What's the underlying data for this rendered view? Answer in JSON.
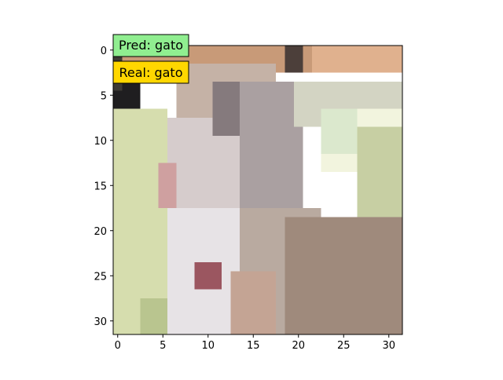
{
  "image": {
    "grid_size": [
      32,
      32
    ],
    "x_ticks": [
      0,
      5,
      10,
      15,
      20,
      25,
      30
    ],
    "y_ticks": [
      0,
      5,
      10,
      15,
      20,
      25,
      30
    ],
    "colors": {
      "frame": "#000000",
      "tick_text": "#000000"
    },
    "palette_regions": [
      {
        "color": "#c89a78",
        "x": [
          0,
          32
        ],
        "y": [
          0,
          3
        ]
      },
      {
        "color": "#e0b18e",
        "x": [
          22,
          32
        ],
        "y": [
          0,
          3
        ]
      },
      {
        "color": "#c5b2a6",
        "x": [
          7,
          18
        ],
        "y": [
          2,
          8
        ]
      },
      {
        "color": "#aaa0a1",
        "x": [
          12,
          21
        ],
        "y": [
          4,
          19
        ]
      },
      {
        "color": "#d3d4c3",
        "x": [
          20,
          32
        ],
        "y": [
          4,
          9
        ]
      },
      {
        "color": "#f2f4de",
        "x": [
          23,
          32
        ],
        "y": [
          7,
          14
        ]
      },
      {
        "color": "#c7cfa3",
        "x": [
          27,
          32
        ],
        "y": [
          9,
          19
        ]
      },
      {
        "color": "#d6ddae",
        "x": [
          0,
          6
        ],
        "y": [
          7,
          32
        ]
      },
      {
        "color": "#b9c58f",
        "x": [
          3,
          6
        ],
        "y": [
          28,
          32
        ]
      },
      {
        "color": "#d6cccc",
        "x": [
          6,
          14
        ],
        "y": [
          8,
          19
        ]
      },
      {
        "color": "#e7e3e6",
        "x": [
          6,
          14
        ],
        "y": [
          18,
          32
        ]
      },
      {
        "color": "#b9aaa0",
        "x": [
          14,
          23
        ],
        "y": [
          18,
          32
        ]
      },
      {
        "color": "#9f8a7c",
        "x": [
          19,
          32
        ],
        "y": [
          19,
          32
        ]
      },
      {
        "color": "#c4a494",
        "x": [
          13,
          18
        ],
        "y": [
          25,
          32
        ]
      },
      {
        "color": "#1f1e20",
        "x": [
          0,
          3
        ],
        "y": [
          3,
          7
        ]
      },
      {
        "color": "#3d3a34",
        "x": [
          0,
          1
        ],
        "y": [
          0,
          5
        ]
      },
      {
        "color": "#4c3f3a",
        "x": [
          19,
          21
        ],
        "y": [
          0,
          3
        ]
      },
      {
        "color": "#dbe8cd",
        "x": [
          23,
          27
        ],
        "y": [
          7,
          12
        ]
      },
      {
        "color": "#cfa0a0",
        "x": [
          5,
          7
        ],
        "y": [
          13,
          18
        ]
      },
      {
        "color": "#9b5660",
        "x": [
          9,
          12
        ],
        "y": [
          24,
          27
        ]
      },
      {
        "color": "#857a7d",
        "x": [
          11,
          14
        ],
        "y": [
          4,
          10
        ]
      }
    ]
  },
  "labels": {
    "pred": {
      "text": "Pred: gato",
      "bg": "#90ee90"
    },
    "real": {
      "text": "Real: gato",
      "bg": "#ffd700"
    }
  }
}
